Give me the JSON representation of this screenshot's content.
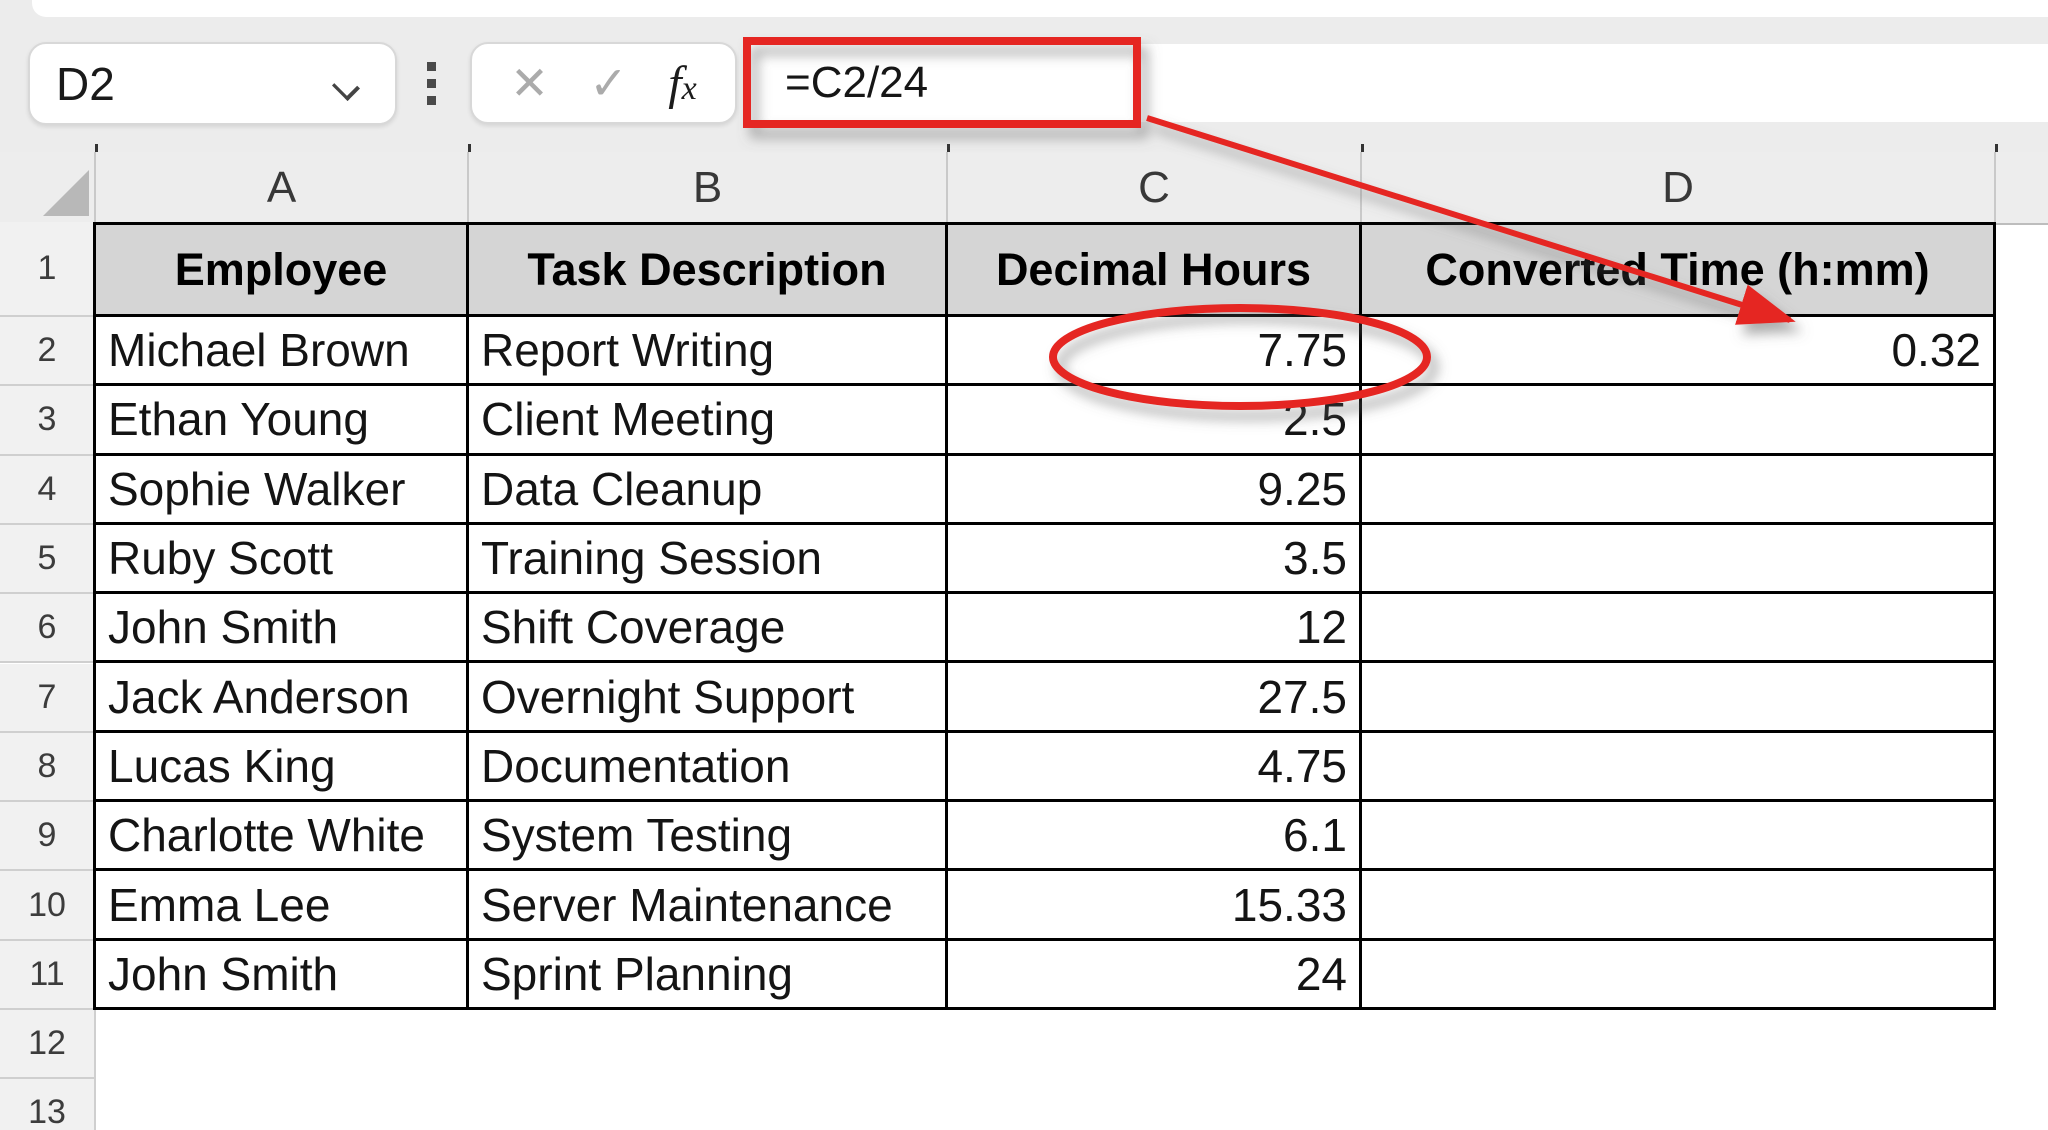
{
  "colors": {
    "annotation_red": "#e52521",
    "header_fill": "#d5d5d5",
    "col_header_bg": "#ededed",
    "row_header_bg": "#f1f1f1",
    "topbar_bg": "#ececec",
    "table_border": "#000000"
  },
  "name_box": {
    "value": "D2",
    "dropdown_icon": "chevron-down"
  },
  "formula_bar": {
    "cancel_icon": "✕",
    "enter_icon": "✓",
    "fx_f": "f",
    "fx_x": "x",
    "formula": "=C2/24"
  },
  "sheet": {
    "column_letters": [
      "A",
      "B",
      "C",
      "D"
    ],
    "row_numbers": [
      "1",
      "2",
      "3",
      "4",
      "5",
      "6",
      "7",
      "8",
      "9",
      "10",
      "11",
      "12",
      "13"
    ],
    "header_row": [
      "Employee",
      "Task Description",
      "Decimal Hours",
      "Converted Time (h:mm)"
    ],
    "data_rows": [
      {
        "row": "2",
        "employee": "Michael Brown",
        "task": "Report Writing",
        "hours": "7.75",
        "converted": "0.32"
      },
      {
        "row": "3",
        "employee": "Ethan Young",
        "task": "Client Meeting",
        "hours": "2.5",
        "converted": ""
      },
      {
        "row": "4",
        "employee": "Sophie Walker",
        "task": "Data Cleanup",
        "hours": "9.25",
        "converted": ""
      },
      {
        "row": "5",
        "employee": "Ruby Scott",
        "task": "Training Session",
        "hours": "3.5",
        "converted": ""
      },
      {
        "row": "6",
        "employee": "John Smith",
        "task": "Shift Coverage",
        "hours": "12",
        "converted": ""
      },
      {
        "row": "7",
        "employee": "Jack Anderson",
        "task": "Overnight Support",
        "hours": "27.5",
        "converted": ""
      },
      {
        "row": "8",
        "employee": "Lucas King",
        "task": "Documentation",
        "hours": "4.75",
        "converted": ""
      },
      {
        "row": "9",
        "employee": "Charlotte White",
        "task": "System Testing",
        "hours": "6.1",
        "converted": ""
      },
      {
        "row": "10",
        "employee": "Emma Lee",
        "task": "Server Maintenance",
        "hours": "15.33",
        "converted": ""
      },
      {
        "row": "11",
        "employee": "John Smith",
        "task": "Sprint Planning",
        "hours": "24",
        "converted": ""
      }
    ]
  },
  "annotations": {
    "boxed_formula": "=C2/24",
    "circled_value": "7.75",
    "arrow_points_to": "0.32"
  }
}
